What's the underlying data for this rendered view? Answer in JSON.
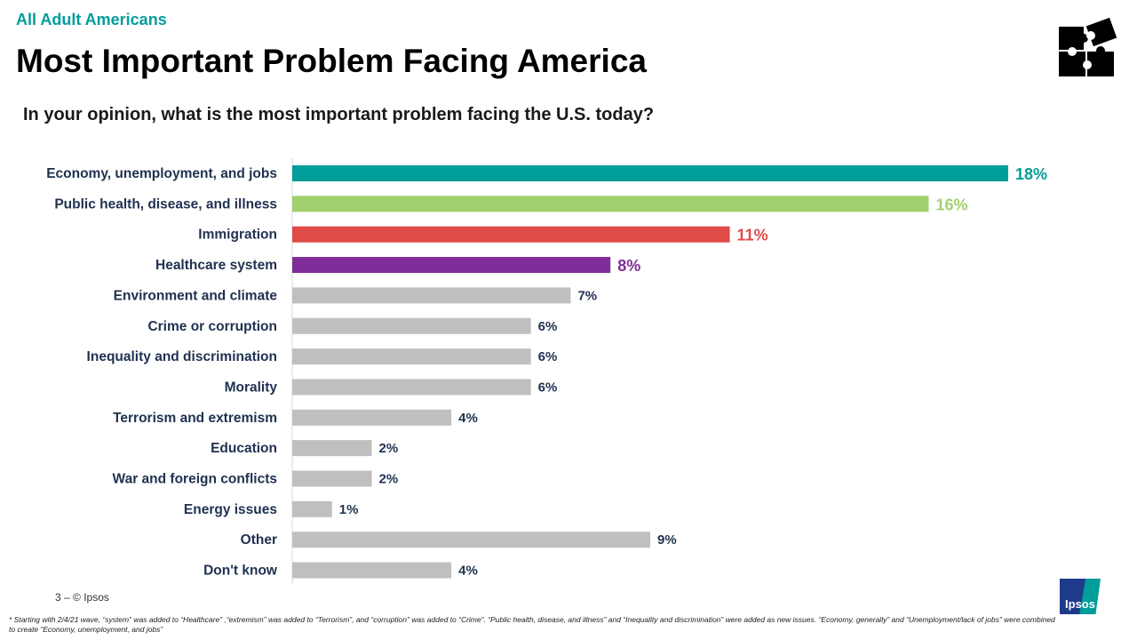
{
  "header": {
    "supertitle": "All Adult Americans",
    "title": "Most Important Problem Facing America",
    "question": "In your opinion, what is the most important problem facing the U.S. today?"
  },
  "footer": {
    "page": "3 –  © Ipsos",
    "footnote": "* Starting with 2/4/21 wave, “system” was added to “Healthcare” ,“extremism” was added to “Terrorism”, and “corruption” was added to “Crime”. “Public health, disease, and illness” and “Inequality and discrimination” were added as new issues. “Economy, generally” and “Unemployment/lack of jobs” were combined to create “Economy, unemployment, and jobs”",
    "logo_text": "Ipsos"
  },
  "icons": {
    "top_right": "puzzle-pieces-icon"
  },
  "chart_data": {
    "type": "bar",
    "orientation": "horizontal",
    "categories": [
      "Economy, unemployment, and jobs",
      "Public health, disease, and illness",
      "Immigration",
      "Healthcare system",
      "Environment and climate",
      "Crime or corruption",
      "Inequality and discrimination",
      "Morality",
      "Terrorism and extremism",
      "Education",
      "War and foreign conflicts",
      "Energy issues",
      "Other",
      "Don't know"
    ],
    "values": [
      18,
      16,
      11,
      8,
      7,
      6,
      6,
      6,
      4,
      2,
      2,
      1,
      9,
      4
    ],
    "labels": [
      "18%",
      "16%",
      "11%",
      "8%",
      "7%",
      "6%",
      "6%",
      "6%",
      "4%",
      "2%",
      "2%",
      "1%",
      "9%",
      "4%"
    ],
    "colors": [
      "#009D9A",
      "#A2D06F",
      "#E04A47",
      "#7F2D98",
      "#BFBFBF",
      "#BFBFBF",
      "#BFBFBF",
      "#BFBFBF",
      "#BFBFBF",
      "#BFBFBF",
      "#BFBFBF",
      "#BFBFBF",
      "#BFBFBF",
      "#BFBFBF"
    ],
    "label_colors": [
      "#009D9A",
      "#A2D06F",
      "#E04A47",
      "#7F2D98",
      "#1F3150",
      "#1F3150",
      "#1F3150",
      "#1F3150",
      "#1F3150",
      "#1F3150",
      "#1F3150",
      "#1F3150",
      "#1F3150",
      "#1F3150"
    ],
    "xlim": [
      0,
      18
    ],
    "grid": false
  }
}
